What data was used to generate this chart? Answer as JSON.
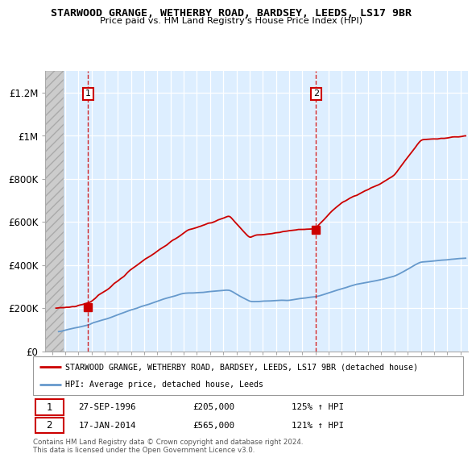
{
  "title": "STARWOOD GRANGE, WETHERBY ROAD, BARDSEY, LEEDS, LS17 9BR",
  "subtitle": "Price paid vs. HM Land Registry's House Price Index (HPI)",
  "red_label": "STARWOOD GRANGE, WETHERBY ROAD, BARDSEY, LEEDS, LS17 9BR (detached house)",
  "blue_label": "HPI: Average price, detached house, Leeds",
  "annotation1_date": "27-SEP-1996",
  "annotation1_price": "£205,000",
  "annotation1_hpi": "125% ↑ HPI",
  "annotation2_date": "17-JAN-2014",
  "annotation2_price": "£565,000",
  "annotation2_hpi": "121% ↑ HPI",
  "footnote": "Contains HM Land Registry data © Crown copyright and database right 2024.\nThis data is licensed under the Open Government Licence v3.0.",
  "ylim": [
    0,
    1300000
  ],
  "xlim_start": 1993.5,
  "xlim_end": 2025.6,
  "sale1_x": 1996.74,
  "sale1_y": 205000,
  "sale2_x": 2014.04,
  "sale2_y": 565000,
  "background_color": "#ffffff",
  "chart_bg_color": "#ddeeff",
  "hatch_color": "#bbbbbb",
  "red_color": "#cc0000",
  "blue_color": "#6699cc"
}
